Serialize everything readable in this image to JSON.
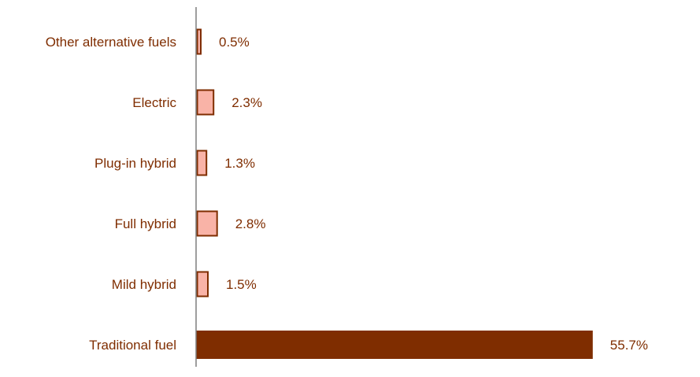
{
  "chart_data": {
    "type": "bar",
    "orientation": "horizontal",
    "title": "",
    "xlabel": "",
    "ylabel": "",
    "categories": [
      "Other alternative fuels",
      "Electric",
      "Plug-in hybrid",
      "Full hybrid",
      "Mild hybrid",
      "Traditional fuel"
    ],
    "values": [
      0.5,
      2.3,
      1.3,
      2.8,
      1.5,
      55.7
    ],
    "value_labels": [
      "0.5%",
      "2.3%",
      "1.3%",
      "2.8%",
      "1.5%",
      "55.7%"
    ],
    "unit": "%",
    "xlim": [
      0,
      60
    ],
    "grid": false,
    "legend": "none",
    "colors": {
      "highlight_fill": "#7f2d00",
      "highlight_stroke": "#7f2d00",
      "other_fill": "#f9b3a7",
      "other_stroke": "#7f2d00",
      "text": "#7f2d00",
      "axis": "#7f7f7f"
    },
    "highlight_index": 5
  }
}
